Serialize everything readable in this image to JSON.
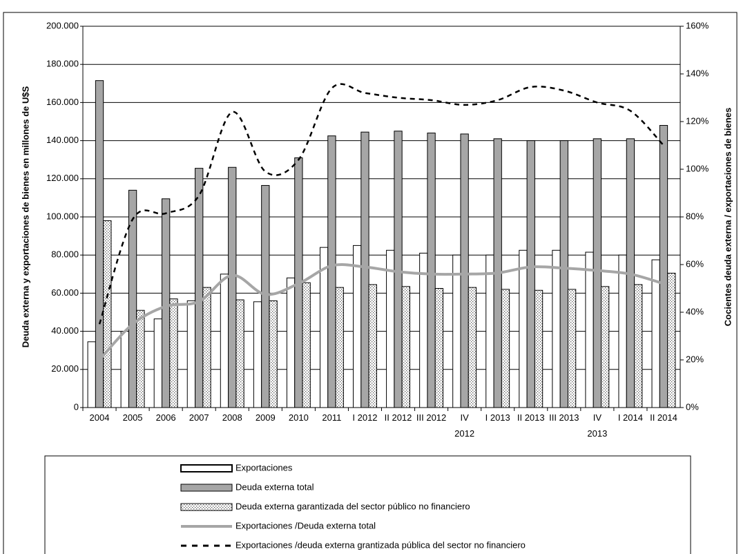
{
  "chart_data": {
    "type": "bar",
    "y_label": "Deuda externa y exportaciones de bienes en millones de U$S",
    "y2_label": "Cocientes deuda externa / exportaciones de bienes",
    "categories": [
      "2004",
      "2005",
      "2006",
      "2007",
      "2008",
      "2009",
      "2010",
      "2011",
      "I 2012",
      "II 2012",
      "III 2012",
      "IV 2012",
      "I 2013",
      "II 2013",
      "III 2013",
      "IV 2013",
      "I 2014",
      "II 2014"
    ],
    "series": [
      {
        "name": "Exportaciones",
        "type": "bar",
        "color": "#ffffff",
        "values": [
          34500,
          40000,
          46500,
          56000,
          70000,
          55500,
          68000,
          84000,
          85000,
          82500,
          81000,
          80000,
          80000,
          82500,
          82500,
          81500,
          80000,
          77500
        ]
      },
      {
        "name": "Deuda externa total",
        "type": "bar",
        "color": "#a6a6a6",
        "values": [
          171500,
          114000,
          109500,
          125500,
          126000,
          116500,
          131000,
          142500,
          144500,
          145000,
          144000,
          143500,
          141000,
          140000,
          140000,
          141000,
          141000,
          148000
        ]
      },
      {
        "name": "Deuda externa garantizada del sector público no financiero",
        "type": "bar",
        "color": "#ffffff",
        "pattern": "dotted",
        "values": [
          98000,
          51000,
          57000,
          63000,
          56500,
          56000,
          65500,
          63000,
          64500,
          63500,
          62500,
          63000,
          62000,
          61500,
          62000,
          63500,
          64500,
          70500
        ]
      },
      {
        "name": "Exportaciones /Deuda externa total",
        "type": "line",
        "axis": "y2",
        "color": "#a6a6a6",
        "values": [
          20,
          35,
          42.5,
          44.5,
          55.5,
          47.5,
          52,
          59.5,
          59,
          57,
          56,
          56,
          56.5,
          59,
          58.5,
          57.5,
          56,
          52
        ]
      },
      {
        "name": "Exportaciones /deuda externa grantizada pública del sector no financiero",
        "type": "line",
        "axis": "y2",
        "color": "#000000",
        "dashed": true,
        "values": [
          35,
          79,
          81.5,
          89,
          124,
          99,
          104,
          134,
          132,
          130,
          129,
          127,
          129,
          134.5,
          133,
          128,
          124.5,
          110
        ]
      }
    ],
    "ylim": [
      0,
      200000
    ],
    "yticks": [
      0,
      {
        "value": 20000,
        "label": "20.000"
      },
      {
        "value": 40000,
        "label": "40.000"
      },
      {
        "value": 60000,
        "label": "60.000"
      },
      {
        "value": 80000,
        "label": "80.000"
      },
      {
        "value": 100000,
        "label": "100.000"
      },
      {
        "value": 120000,
        "label": "120.000"
      },
      {
        "value": 140000,
        "label": "140.000"
      },
      {
        "value": 160000,
        "label": "160.000"
      },
      {
        "value": 180000,
        "label": "180.000"
      },
      {
        "value": 200000,
        "label": "200.000"
      }
    ],
    "y2lim": [
      0,
      160
    ],
    "y2ticks": [
      {
        "value": 0,
        "label": "0%"
      },
      {
        "value": 20,
        "label": "20%"
      },
      {
        "value": 40,
        "label": "40%"
      },
      {
        "value": 60,
        "label": "60%"
      },
      {
        "value": 80,
        "label": "80%"
      },
      {
        "value": 100,
        "label": "100%"
      },
      {
        "value": 120,
        "label": "120%"
      },
      {
        "value": 140,
        "label": "140%"
      },
      {
        "value": 160,
        "label": "160%"
      }
    ],
    "grid": true,
    "legend": "bottom"
  }
}
